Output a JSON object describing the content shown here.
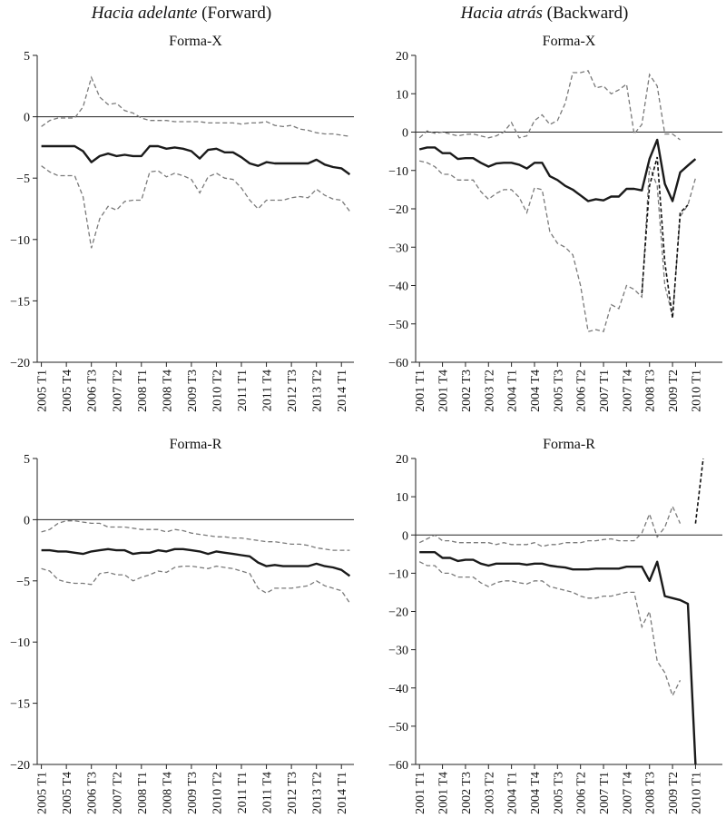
{
  "headers": {
    "left": {
      "italic": "Hacia adelante",
      "plain": " (Forward)"
    },
    "right": {
      "italic": "Hacia atrás",
      "plain": " (Backward)"
    }
  },
  "chart_data": [
    {
      "id": "fx",
      "type": "line",
      "title": "Forma-X",
      "ylim": [
        -20,
        5
      ],
      "yticks": [
        5,
        0,
        -5,
        -10,
        -15,
        -20
      ],
      "n": 38,
      "xticks": [
        [
          0,
          "2005 T1"
        ],
        [
          3,
          "2005 T4"
        ],
        [
          6,
          "2006 T3"
        ],
        [
          9,
          "2007 T2"
        ],
        [
          12,
          "2008 T1"
        ],
        [
          15,
          "2008 T4"
        ],
        [
          18,
          "2009 T3"
        ],
        [
          21,
          "2010 T2"
        ],
        [
          24,
          "2011 T1"
        ],
        [
          27,
          "2011 T4"
        ],
        [
          30,
          "2012 T3"
        ],
        [
          33,
          "2013 T2"
        ],
        [
          36,
          "2014 T1"
        ]
      ],
      "series": [
        {
          "name": "upper",
          "style": "band",
          "values": [
            -0.8,
            -0.3,
            -0.1,
            -0.1,
            -0.1,
            0.8,
            3.2,
            1.6,
            1.0,
            1.1,
            0.5,
            0.3,
            -0.1,
            -0.3,
            -0.3,
            -0.3,
            -0.4,
            -0.4,
            -0.4,
            -0.4,
            -0.5,
            -0.5,
            -0.5,
            -0.5,
            -0.6,
            -0.5,
            -0.5,
            -0.4,
            -0.7,
            -0.8,
            -0.7,
            -1.0,
            -1.1,
            -1.3,
            -1.4,
            -1.4,
            -1.5,
            -1.6
          ]
        },
        {
          "name": "central",
          "style": "solid",
          "values": [
            -2.4,
            -2.4,
            -2.4,
            -2.4,
            -2.4,
            -2.8,
            -3.7,
            -3.2,
            -3.0,
            -3.2,
            -3.1,
            -3.2,
            -3.2,
            -2.4,
            -2.4,
            -2.6,
            -2.5,
            -2.6,
            -2.8,
            -3.4,
            -2.7,
            -2.6,
            -2.9,
            -2.9,
            -3.3,
            -3.8,
            -4.0,
            -3.7,
            -3.8,
            -3.8,
            -3.8,
            -3.8,
            -3.8,
            -3.5,
            -3.9,
            -4.1,
            -4.2,
            -4.7
          ]
        },
        {
          "name": "lower",
          "style": "band",
          "values": [
            -4.0,
            -4.5,
            -4.8,
            -4.8,
            -4.8,
            -6.5,
            -10.7,
            -8.3,
            -7.3,
            -7.6,
            -6.9,
            -6.8,
            -6.8,
            -4.5,
            -4.4,
            -4.9,
            -4.6,
            -4.8,
            -5.1,
            -6.2,
            -4.9,
            -4.6,
            -5.0,
            -5.1,
            -5.8,
            -6.8,
            -7.5,
            -6.8,
            -6.8,
            -6.8,
            -6.6,
            -6.5,
            -6.6,
            -5.9,
            -6.4,
            -6.7,
            -6.8,
            -7.7
          ]
        }
      ]
    },
    {
      "id": "bx",
      "type": "line",
      "title": "Forma-X",
      "ylim": [
        -60,
        20
      ],
      "yticks": [
        20,
        10,
        0,
        -10,
        -20,
        -30,
        -40,
        -50,
        -60
      ],
      "n": 40,
      "xticks": [
        [
          0,
          "2001 T1"
        ],
        [
          3,
          "2001 T4"
        ],
        [
          6,
          "2002 T3"
        ],
        [
          9,
          "2003 T2"
        ],
        [
          12,
          "2004 T1"
        ],
        [
          15,
          "2004 T4"
        ],
        [
          18,
          "2005 T3"
        ],
        [
          21,
          "2006 T2"
        ],
        [
          24,
          "2007 T1"
        ],
        [
          27,
          "2007 T4"
        ],
        [
          30,
          "2008 T3"
        ],
        [
          33,
          "2009 T2"
        ],
        [
          36,
          "2010 T1"
        ]
      ],
      "series": [
        {
          "name": "upper",
          "style": "band",
          "values": [
            -1.5,
            0.3,
            -0.3,
            0.0,
            -0.5,
            -1.0,
            -0.6,
            -0.5,
            -1.0,
            -1.5,
            -1.0,
            0.0,
            2.5,
            -1.5,
            -1.0,
            3.0,
            4.5,
            2.0,
            3.0,
            7.5,
            15.5,
            15.5,
            16.0,
            11.5,
            12.0,
            10.0,
            11.0,
            12.5,
            -0.5,
            2.0,
            15.0,
            12.0,
            -0.5,
            -0.5,
            -2.0
          ]
        },
        {
          "name": "central",
          "style": "solid",
          "values": [
            -4.5,
            -4.0,
            -4.0,
            -5.5,
            -5.5,
            -7.0,
            -6.8,
            -6.8,
            -8.0,
            -9.0,
            -8.2,
            -8.0,
            -8.0,
            -8.5,
            -9.5,
            -8.0,
            -8.0,
            -11.5,
            -12.5,
            -14.0,
            -15.0,
            -16.5,
            -18.0,
            -17.5,
            -17.8,
            -16.8,
            -16.8,
            -14.8,
            -14.8,
            -15.2,
            -7.0,
            -2.0,
            -13.5,
            -18.0,
            -10.5,
            -8.7,
            -7.0
          ]
        },
        {
          "name": "lower",
          "style": "band",
          "values": [
            -7.5,
            -8.0,
            -9.0,
            -11.0,
            -11.0,
            -12.5,
            -12.5,
            -12.5,
            -15.5,
            -17.5,
            -16.0,
            -15.0,
            -15.0,
            -17.0,
            -21.0,
            -14.5,
            -15.0,
            -26.0,
            -29.0,
            -30.0,
            -32.0,
            -40.0,
            -52.0,
            -51.5,
            -52.0,
            -45.0,
            -46.0,
            -40.0,
            -41.0,
            -43.0,
            -9.0,
            -14.0,
            -40.0,
            -48.0,
            -22.0,
            -19.0,
            -12.0
          ]
        },
        {
          "name": "spike",
          "style": "spike",
          "values": [
            null,
            null,
            null,
            null,
            null,
            null,
            null,
            null,
            null,
            null,
            null,
            null,
            null,
            null,
            null,
            null,
            null,
            null,
            null,
            null,
            null,
            null,
            null,
            null,
            null,
            null,
            null,
            null,
            null,
            -42.0,
            -14.0,
            -6.5,
            -34.0,
            -48.5,
            -21.0,
            -19.0,
            null
          ]
        }
      ]
    },
    {
      "id": "fr",
      "type": "line",
      "title": "Forma-R",
      "ylim": [
        -20,
        5
      ],
      "yticks": [
        5,
        0,
        -5,
        -10,
        -15,
        -20
      ],
      "n": 38,
      "xticks": [
        [
          0,
          "2005 T1"
        ],
        [
          3,
          "2005 T4"
        ],
        [
          6,
          "2006 T3"
        ],
        [
          9,
          "2007 T2"
        ],
        [
          12,
          "2008 T1"
        ],
        [
          15,
          "2008 T4"
        ],
        [
          18,
          "2009 T3"
        ],
        [
          21,
          "2010 T2"
        ],
        [
          24,
          "2011 T1"
        ],
        [
          27,
          "2011 T4"
        ],
        [
          30,
          "2012 T3"
        ],
        [
          33,
          "2013 T2"
        ],
        [
          36,
          "2014 T1"
        ]
      ],
      "series": [
        {
          "name": "upper",
          "style": "band",
          "values": [
            -1.0,
            -0.8,
            -0.3,
            -0.1,
            -0.1,
            -0.2,
            -0.3,
            -0.3,
            -0.6,
            -0.6,
            -0.6,
            -0.7,
            -0.8,
            -0.8,
            -0.8,
            -1.0,
            -0.8,
            -0.9,
            -1.1,
            -1.2,
            -1.3,
            -1.4,
            -1.4,
            -1.5,
            -1.5,
            -1.6,
            -1.7,
            -1.8,
            -1.8,
            -1.9,
            -2.0,
            -2.0,
            -2.1,
            -2.3,
            -2.4,
            -2.5,
            -2.5,
            -2.5
          ]
        },
        {
          "name": "central",
          "style": "solid",
          "values": [
            -2.5,
            -2.5,
            -2.6,
            -2.6,
            -2.7,
            -2.8,
            -2.6,
            -2.5,
            -2.4,
            -2.5,
            -2.5,
            -2.8,
            -2.7,
            -2.7,
            -2.5,
            -2.6,
            -2.4,
            -2.4,
            -2.5,
            -2.6,
            -2.8,
            -2.6,
            -2.7,
            -2.8,
            -2.9,
            -3.0,
            -3.5,
            -3.8,
            -3.7,
            -3.8,
            -3.8,
            -3.8,
            -3.8,
            -3.6,
            -3.8,
            -3.9,
            -4.1,
            -4.6
          ]
        },
        {
          "name": "lower",
          "style": "band",
          "values": [
            -4.0,
            -4.2,
            -4.9,
            -5.1,
            -5.2,
            -5.2,
            -5.3,
            -4.4,
            -4.3,
            -4.5,
            -4.5,
            -5.0,
            -4.7,
            -4.5,
            -4.2,
            -4.3,
            -3.9,
            -3.8,
            -3.8,
            -3.9,
            -4.0,
            -3.8,
            -3.9,
            -4.0,
            -4.2,
            -4.4,
            -5.6,
            -6.0,
            -5.6,
            -5.6,
            -5.6,
            -5.5,
            -5.4,
            -5.0,
            -5.4,
            -5.6,
            -5.8,
            -6.8
          ]
        }
      ]
    },
    {
      "id": "br",
      "type": "line",
      "title": "Forma-R",
      "ylim": [
        -60,
        20
      ],
      "yticks": [
        20,
        10,
        0,
        -10,
        -20,
        -30,
        -40,
        -50,
        -60
      ],
      "n": 40,
      "xticks": [
        [
          0,
          "2001 T1"
        ],
        [
          3,
          "2001 T4"
        ],
        [
          6,
          "2002 T3"
        ],
        [
          9,
          "2003 T2"
        ],
        [
          12,
          "2004 T1"
        ],
        [
          15,
          "2004 T4"
        ],
        [
          18,
          "2005 T3"
        ],
        [
          21,
          "2006 T2"
        ],
        [
          24,
          "2007 T1"
        ],
        [
          27,
          "2007 T4"
        ],
        [
          30,
          "2008 T3"
        ],
        [
          33,
          "2009 T2"
        ],
        [
          36,
          "2010 T1"
        ]
      ],
      "series": [
        {
          "name": "upper",
          "style": "band",
          "values": [
            -2.0,
            -1.0,
            0.0,
            -1.5,
            -1.5,
            -2.0,
            -2.0,
            -2.0,
            -2.0,
            -2.0,
            -2.5,
            -2.0,
            -2.5,
            -2.5,
            -2.5,
            -2.0,
            -3.0,
            -2.5,
            -2.5,
            -2.0,
            -2.0,
            -2.0,
            -1.5,
            -1.5,
            -1.2,
            -1.0,
            -1.5,
            -1.5,
            -1.5,
            0.5,
            5.5,
            -0.5,
            2.0,
            7.5,
            3.0
          ]
        },
        {
          "name": "central",
          "style": "solid",
          "values": [
            -4.5,
            -4.5,
            -4.5,
            -6.0,
            -6.0,
            -6.8,
            -6.5,
            -6.5,
            -7.5,
            -8.0,
            -7.5,
            -7.5,
            -7.5,
            -7.5,
            -7.8,
            -7.5,
            -7.5,
            -8.0,
            -8.3,
            -8.5,
            -9.0,
            -9.0,
            -9.0,
            -8.8,
            -8.8,
            -8.8,
            -8.8,
            -8.3,
            -8.3,
            -8.3,
            -12.0,
            -7.0,
            -16.0,
            -16.5,
            -17.0,
            -18.0,
            -60.0
          ]
        },
        {
          "name": "lower",
          "style": "band",
          "values": [
            -7.0,
            -8.0,
            -8.0,
            -10.0,
            -10.0,
            -11.0,
            -11.0,
            -11.0,
            -12.5,
            -13.5,
            -12.5,
            -12.0,
            -12.0,
            -12.5,
            -12.8,
            -12.0,
            -12.0,
            -13.5,
            -14.0,
            -14.5,
            -15.0,
            -16.0,
            -16.5,
            -16.5,
            -16.0,
            -16.0,
            -15.5,
            -15.0,
            -15.0,
            -24.0,
            -20.0,
            -33.0,
            -36.0,
            -42.0,
            -38.0
          ]
        },
        {
          "name": "spike",
          "style": "spike",
          "values": [
            null,
            null,
            null,
            null,
            null,
            null,
            null,
            null,
            null,
            null,
            null,
            null,
            null,
            null,
            null,
            null,
            null,
            null,
            null,
            null,
            null,
            null,
            null,
            null,
            null,
            null,
            null,
            null,
            null,
            null,
            null,
            null,
            null,
            null,
            null,
            null,
            3.0,
            20.0
          ]
        }
      ]
    }
  ]
}
